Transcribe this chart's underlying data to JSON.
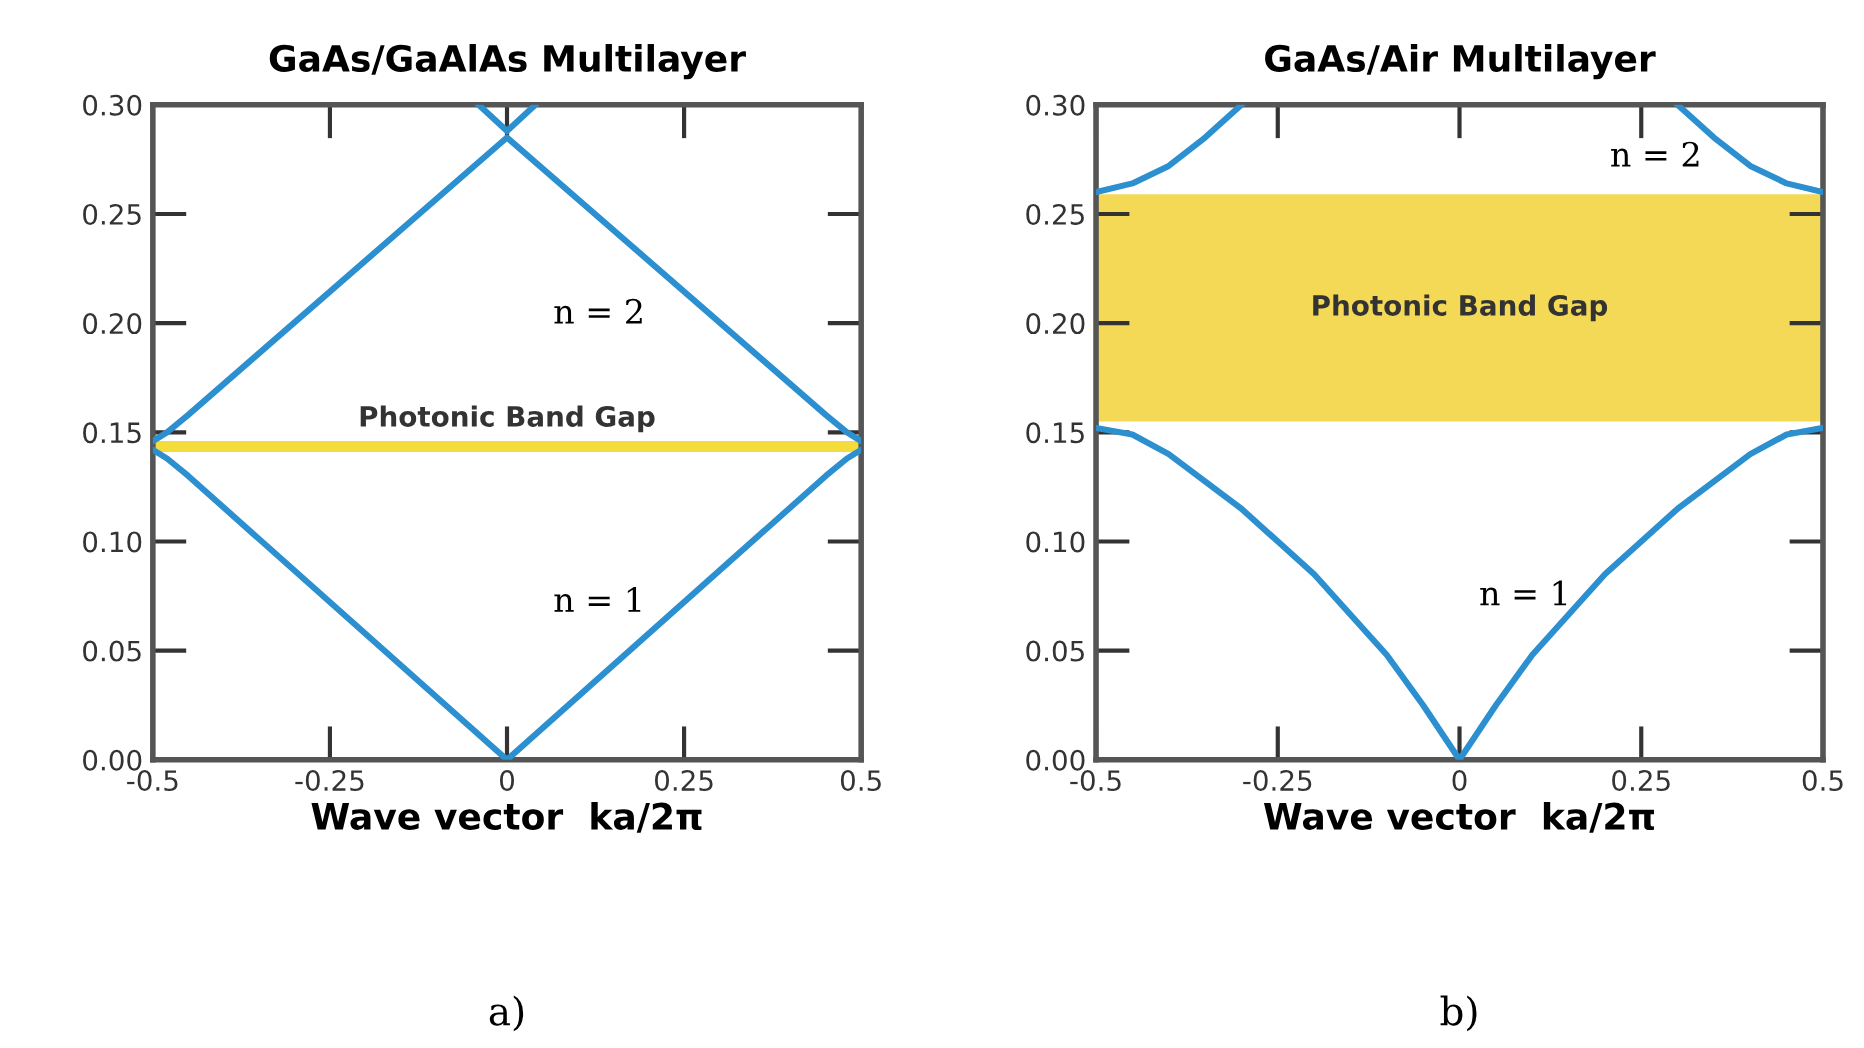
{
  "chart_data": [
    {
      "type": "line",
      "title": "GaAs/GaAlAs Multilayer",
      "xlabel": "Wave vector  ka/2π",
      "xlim": [
        -0.5,
        0.5
      ],
      "xticks": [
        -0.5,
        -0.25,
        0,
        0.25,
        0.5
      ],
      "ylim": [
        0,
        0.3
      ],
      "yticks": [
        {
          "value": 0,
          "label": "0.00"
        },
        {
          "value": 0.05,
          "label": "0.05"
        },
        {
          "value": 0.1,
          "label": "0.10"
        },
        {
          "value": 0.15,
          "label": "0.15"
        },
        {
          "value": 0.2,
          "label": "0.20"
        },
        {
          "value": 0.25,
          "label": "0.25"
        },
        {
          "value": 0.3,
          "label": "0.30"
        }
      ],
      "grid": false,
      "marker": "none",
      "line_style": "solid",
      "series": [
        {
          "name": "n = 1",
          "color": "#2b8fd0",
          "x": [
            -0.5,
            -0.48,
            -0.45,
            0,
            0.45,
            0.48,
            0.5
          ],
          "values": [
            0.142,
            0.138,
            0.13,
            0,
            0.13,
            0.138,
            0.142
          ]
        },
        {
          "name": "n = 2",
          "color": "#2b8fd0",
          "x": [
            -0.5,
            -0.48,
            -0.45,
            0,
            0.45,
            0.48,
            0.5
          ],
          "values": [
            0.146,
            0.15,
            0.158,
            0.285,
            0.158,
            0.15,
            0.146
          ]
        },
        {
          "color": "#2b8fd0",
          "x": [
            -0.04,
            0,
            0.04
          ],
          "values": [
            0.3,
            0.288,
            0.3
          ]
        }
      ],
      "bands": [
        {
          "axis": "y",
          "from": 0.141,
          "to": 0.146,
          "label": "Photonic Band Gap",
          "color": "#f3dc3c"
        }
      ],
      "annotations": [
        "a)"
      ]
    },
    {
      "type": "line",
      "title": "GaAs/Air Multilayer",
      "xlabel": "Wave vector  ka/2π",
      "xlim": [
        -0.5,
        0.5
      ],
      "xticks": [
        -0.5,
        -0.25,
        0,
        0.25,
        0.5
      ],
      "ylim": [
        0,
        0.3
      ],
      "yticks": [
        {
          "value": 0,
          "label": "0.00"
        },
        {
          "value": 0.05,
          "label": "0.05"
        },
        {
          "value": 0.1,
          "label": "0.10"
        },
        {
          "value": 0.15,
          "label": "0.15"
        },
        {
          "value": 0.2,
          "label": "0.20"
        },
        {
          "value": 0.25,
          "label": "0.25"
        },
        {
          "value": 0.3,
          "label": "0.30"
        }
      ],
      "grid": false,
      "marker": "none",
      "line_style": "solid",
      "series": [
        {
          "name": "n = 1",
          "color": "#2b8fd0",
          "x": [
            -0.5,
            -0.45,
            -0.4,
            -0.3,
            -0.2,
            -0.1,
            -0.05,
            0,
            0.05,
            0.1,
            0.2,
            0.3,
            0.4,
            0.45,
            0.5
          ],
          "values": [
            0.152,
            0.149,
            0.14,
            0.115,
            0.085,
            0.048,
            0.025,
            0,
            0.025,
            0.048,
            0.085,
            0.115,
            0.14,
            0.149,
            0.152
          ]
        },
        {
          "name": "n = 2",
          "color": "#2b8fd0",
          "x": [
            -0.5,
            -0.45,
            -0.4,
            -0.35,
            -0.3,
            0,
            0.3,
            0.35,
            0.4,
            0.45,
            0.5
          ],
          "values": [
            0.26,
            0.264,
            0.272,
            0.285,
            0.3,
            null,
            0.3,
            0.285,
            0.272,
            0.264,
            0.26
          ]
        }
      ],
      "bands": [
        {
          "axis": "y",
          "from": 0.155,
          "to": 0.259,
          "label": "Photonic Band Gap",
          "color": "#f3d955"
        }
      ],
      "annotations": [
        "b)"
      ]
    }
  ]
}
